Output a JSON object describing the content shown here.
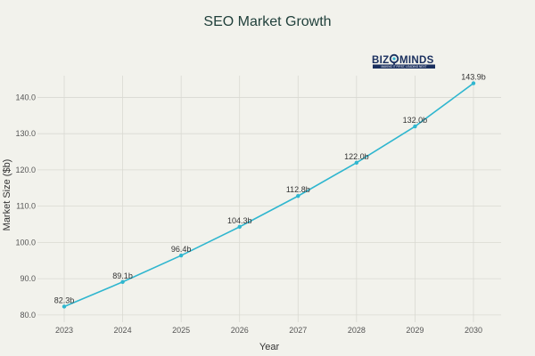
{
  "chart_data": {
    "type": "line",
    "title": "SEO Market Growth",
    "xlabel": "Year",
    "ylabel": "Market Size ($b)",
    "categories": [
      "2023",
      "2024",
      "2025",
      "2026",
      "2027",
      "2028",
      "2029",
      "2030"
    ],
    "series": [
      {
        "values": [
          82.3,
          89.1,
          96.4,
          104.3,
          112.8,
          122.0,
          132.0,
          143.9
        ],
        "data_labels": [
          "82.3b",
          "89.1b",
          "96.4b",
          "104.3b",
          "112.8b",
          "122.0b",
          "132.0b",
          "143.9b"
        ],
        "color": "#2fb6cf"
      }
    ],
    "ylim": [
      78,
      146
    ],
    "yticks": [
      80,
      90,
      100,
      110,
      120,
      130,
      140
    ],
    "ytick_labels": [
      "80.0",
      "90.0",
      "100.0",
      "110.0",
      "120.0",
      "130.0",
      "140.0"
    ],
    "grid": true,
    "legend": "none"
  },
  "logo": {
    "text_left": "BIZ",
    "text_right": "MINDS",
    "tagline": "MAKING IT FIRST, LEADING NEXT",
    "color": "#1a2f5e",
    "icon": "magnifier-icon"
  }
}
